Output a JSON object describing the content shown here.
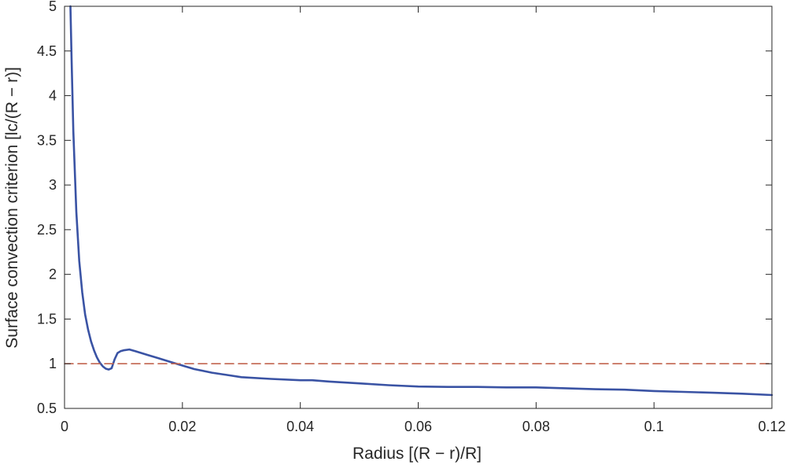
{
  "chart_data": {
    "type": "line",
    "title": "",
    "xlabel": "Radius [(R − r)/R]",
    "ylabel": "Surface convection criterion [lc/(R − r)]",
    "xlim": [
      0,
      0.12
    ],
    "ylim": [
      0.5,
      5
    ],
    "xticks": [
      0,
      0.02,
      0.04,
      0.06,
      0.08,
      0.1,
      0.12
    ],
    "xtick_labels": [
      "0",
      "0.02",
      "0.04",
      "0.06",
      "0.08",
      "0.1",
      "0.12"
    ],
    "yticks": [
      0.5,
      1,
      1.5,
      2,
      2.5,
      3,
      3.5,
      4,
      4.5,
      5
    ],
    "ytick_labels": [
      "0.5",
      "1",
      "1.5",
      "2",
      "2.5",
      "3",
      "3.5",
      "4",
      "4.5",
      "5"
    ],
    "grid": false,
    "series": [
      {
        "color": "#3a53a4",
        "style": "solid",
        "x": [
          0.001,
          0.0012,
          0.0015,
          0.002,
          0.0025,
          0.003,
          0.0035,
          0.004,
          0.0045,
          0.005,
          0.0055,
          0.006,
          0.0065,
          0.007,
          0.0075,
          0.008,
          0.0085,
          0.009,
          0.0095,
          0.01,
          0.011,
          0.012,
          0.014,
          0.016,
          0.018,
          0.02,
          0.022,
          0.025,
          0.028,
          0.03,
          0.035,
          0.04,
          0.042,
          0.045,
          0.05,
          0.055,
          0.06,
          0.065,
          0.07,
          0.075,
          0.08,
          0.085,
          0.09,
          0.095,
          0.1,
          0.105,
          0.11,
          0.115,
          0.12
        ],
        "values": [
          5.0,
          4.4,
          3.6,
          2.7,
          2.15,
          1.8,
          1.55,
          1.38,
          1.25,
          1.15,
          1.07,
          1.01,
          0.97,
          0.945,
          0.935,
          0.95,
          1.05,
          1.12,
          1.14,
          1.15,
          1.16,
          1.14,
          1.1,
          1.06,
          1.02,
          0.98,
          0.94,
          0.9,
          0.87,
          0.85,
          0.83,
          0.815,
          0.815,
          0.8,
          0.78,
          0.76,
          0.745,
          0.74,
          0.74,
          0.735,
          0.735,
          0.725,
          0.715,
          0.71,
          0.695,
          0.685,
          0.675,
          0.665,
          0.65
        ]
      },
      {
        "color": "#c2654f",
        "style": "dashed",
        "x": [
          0,
          0.12
        ],
        "values": [
          1,
          1
        ]
      }
    ]
  }
}
